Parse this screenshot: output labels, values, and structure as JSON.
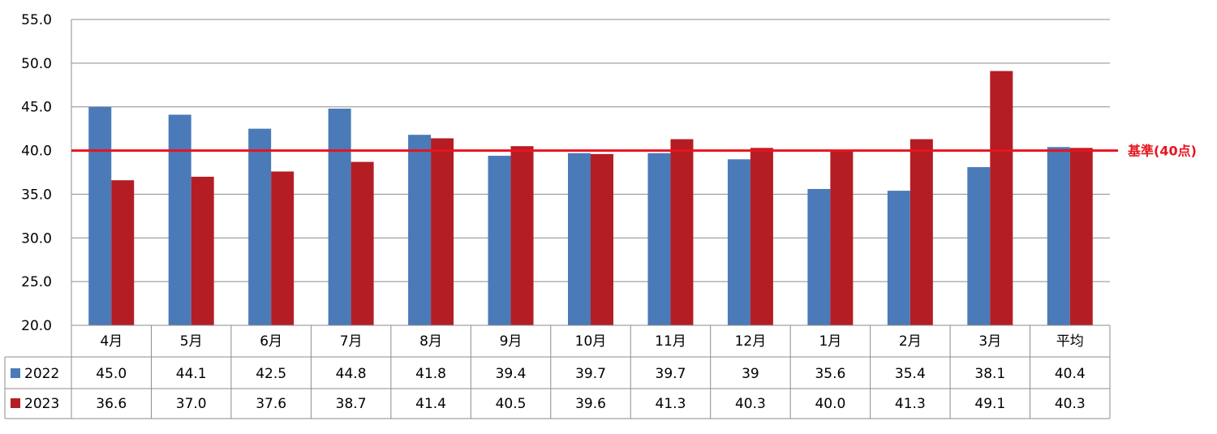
{
  "chart_data": {
    "type": "bar",
    "categories": [
      "4月",
      "5月",
      "6月",
      "7月",
      "8月",
      "9月",
      "10月",
      "11月",
      "12月",
      "1月",
      "2月",
      "3月",
      "平均"
    ],
    "series": [
      {
        "name": "2022",
        "color": "#4a7ab8",
        "values": [
          45.0,
          44.1,
          42.5,
          44.8,
          41.8,
          39.4,
          39.7,
          39.7,
          39,
          35.6,
          35.4,
          38.1,
          40.4
        ],
        "labels": [
          "45.0",
          "44.1",
          "42.5",
          "44.8",
          "41.8",
          "39.4",
          "39.7",
          "39.7",
          "39",
          "35.6",
          "35.4",
          "38.1",
          "40.4"
        ]
      },
      {
        "name": "2023",
        "color": "#b41d24",
        "values": [
          36.6,
          37.0,
          37.6,
          38.7,
          41.4,
          40.5,
          39.6,
          41.3,
          40.3,
          40.0,
          41.3,
          49.1,
          40.3
        ],
        "labels": [
          "36.6",
          "37.0",
          "37.6",
          "38.7",
          "41.4",
          "40.5",
          "39.6",
          "41.3",
          "40.3",
          "40.0",
          "41.3",
          "49.1",
          "40.3"
        ]
      }
    ],
    "ylim": [
      20,
      55
    ],
    "yticks": [
      "20.0",
      "25.0",
      "30.0",
      "35.0",
      "40.0",
      "45.0",
      "50.0",
      "55.0"
    ],
    "grid": true,
    "data_table": true,
    "reference_line": {
      "value": 40,
      "label": "基準(40点)",
      "color": "#e8141e"
    }
  }
}
